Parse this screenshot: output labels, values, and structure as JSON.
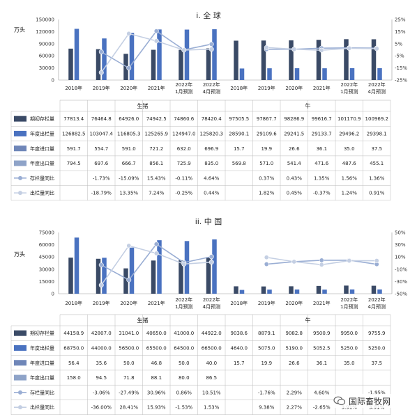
{
  "colors": {
    "stock": "#3a4a66",
    "prod": "#4a72c0",
    "imp": "#6f86b8",
    "exp": "#8ea3c8",
    "stockYoY": "#9aaed4",
    "expYoY": "#c4cfe3"
  },
  "watermark": {
    "text": "国际畜牧网"
  },
  "categories": [
    "2018年",
    "2019年",
    "2020年",
    "2021年",
    [
      "2022年",
      "1月预测"
    ],
    [
      "2022年",
      "4月预测"
    ]
  ],
  "row_labels": [
    "期初存栏量",
    "年度出栏量",
    "年度进口量",
    "年度出口量",
    "存栏量同比",
    "出栏量同比"
  ],
  "panels": [
    {
      "title": "i. 全 球",
      "unit": "万头",
      "left_ticks": [
        "150000",
        "120000",
        "90000",
        "60000",
        "30000",
        "0"
      ],
      "right_ticks": [
        "25%",
        "15%",
        "5%",
        "-5%",
        "-15%",
        "-25%"
      ],
      "groups": [
        "生猪",
        "牛"
      ]
    },
    {
      "title": "ii. 中 国",
      "unit": "万头",
      "left_ticks": [
        "75000",
        "60000",
        "45000",
        "30000",
        "15000",
        "0"
      ],
      "right_ticks": [
        "50%",
        "30%",
        "10%",
        "-10%",
        "-30%",
        "-50%"
      ],
      "groups": [
        "生猪",
        "牛"
      ]
    }
  ],
  "chart_data": [
    {
      "type": "bar",
      "title": "i. 全 球",
      "ylabel": "万头",
      "ylim": [
        0,
        150000
      ],
      "y2lim": [
        -25,
        25
      ],
      "categories": [
        "2018年",
        "2019年",
        "2020年",
        "2021年",
        "2022年1月预测",
        "2022年4月预测"
      ],
      "groups": [
        {
          "name": "生猪",
          "stock": [
            77813.4,
            76464.8,
            64926.0,
            74942.5,
            74860.6,
            78420.4
          ],
          "production": [
            126882.5,
            103047.4,
            116805.3,
            125265.9,
            124947.0,
            125820.3
          ],
          "imports": [
            591.7,
            554.7,
            591.0,
            721.2,
            632.0,
            696.9
          ],
          "exports": [
            794.5,
            697.6,
            666.7,
            856.1,
            725.9,
            835.0
          ],
          "stock_yoy": [
            null,
            -1.73,
            -15.09,
            15.43,
            -0.11,
            4.64
          ],
          "production_yoy": [
            null,
            -18.79,
            13.35,
            7.24,
            -0.25,
            0.44
          ]
        },
        {
          "name": "牛",
          "stock": [
            97505.5,
            97867.7,
            98286.9,
            99616.7,
            101170.9,
            100969.2
          ],
          "production": [
            28590.1,
            29109.6,
            29241.5,
            29133.7,
            29496.2,
            29398.1
          ],
          "imports": [
            15.7,
            19.9,
            26.6,
            36.1,
            35.0,
            37.5
          ],
          "exports": [
            569.8,
            571.0,
            541.4,
            471.6,
            487.6,
            455.1
          ],
          "stock_yoy": [
            null,
            0.37,
            0.43,
            1.35,
            1.56,
            1.36
          ],
          "production_yoy": [
            null,
            1.82,
            0.45,
            -0.37,
            1.24,
            0.91
          ]
        }
      ],
      "table": {
        "rows": [
          [
            "77813.4",
            "76464.8",
            "64926.0",
            "74942.5",
            "74860.6",
            "78420.4",
            "97505.5",
            "97867.7",
            "98286.9",
            "99616.7",
            "101170.9",
            "100969.2"
          ],
          [
            "126882.5",
            "103047.4",
            "116805.3",
            "125265.9",
            "124947.0",
            "125820.3",
            "28590.1",
            "29109.6",
            "29241.5",
            "29133.7",
            "29496.2",
            "29398.1"
          ],
          [
            "591.7",
            "554.7",
            "591.0",
            "721.2",
            "632.0",
            "696.9",
            "15.7",
            "19.9",
            "26.6",
            "36.1",
            "35.0",
            "37.5"
          ],
          [
            "794.5",
            "697.6",
            "666.7",
            "856.1",
            "725.9",
            "835.0",
            "569.8",
            "571.0",
            "541.4",
            "471.6",
            "487.6",
            "455.1"
          ],
          [
            "",
            "-1.73%",
            "-15.09%",
            "15.43%",
            "-0.11%",
            "4.64%",
            "",
            "0.37%",
            "0.43%",
            "1.35%",
            "1.56%",
            "1.36%"
          ],
          [
            "",
            "-18.79%",
            "13.35%",
            "7.24%",
            "-0.25%",
            "0.44%",
            "",
            "1.82%",
            "0.45%",
            "-0.37%",
            "1.24%",
            "0.91%"
          ]
        ]
      }
    },
    {
      "type": "bar",
      "title": "ii. 中 国",
      "ylabel": "万头",
      "ylim": [
        0,
        75000
      ],
      "y2lim": [
        -50,
        50
      ],
      "categories": [
        "2018年",
        "2019年",
        "2020年",
        "2021年",
        "2022年1月预测",
        "2022年4月预测"
      ],
      "groups": [
        {
          "name": "生猪",
          "stock": [
            44158.9,
            42807.0,
            31041.0,
            40650.0,
            41000.0,
            44922.0
          ],
          "production": [
            68750.0,
            44000.0,
            56500.0,
            65500.0,
            64500.0,
            66500.0
          ],
          "imports": [
            56.4,
            35.6,
            50.0,
            46.8,
            50.0,
            40.0
          ],
          "exports": [
            158.0,
            94.5,
            71.8,
            88.1,
            80.0,
            86.5
          ],
          "stock_yoy": [
            null,
            -3.06,
            -27.49,
            30.96,
            0.86,
            10.51
          ],
          "production_yoy": [
            null,
            -36.0,
            28.41,
            15.93,
            -1.53,
            1.53
          ]
        },
        {
          "name": "牛",
          "stock": [
            9038.6,
            8879.1,
            9082.8,
            9500.9,
            9950.0,
            9755.9
          ],
          "production": [
            4640.0,
            5075.0,
            5190.0,
            5052.5,
            5250.0,
            5250.0
          ],
          "imports": [
            15.7,
            19.9,
            26.6,
            36.1,
            35.0,
            37.5
          ],
          "exports": [
            null,
            null,
            null,
            null,
            null,
            null
          ],
          "stock_yoy": [
            null,
            -1.76,
            2.29,
            4.6,
            4.73,
            -1.95
          ],
          "production_yoy": [
            null,
            9.38,
            2.27,
            -2.65,
            3.91,
            3.91
          ]
        }
      ],
      "table": {
        "rows": [
          [
            "44158.9",
            "42807.0",
            "31041.0",
            "40650.0",
            "41000.0",
            "44922.0",
            "9038.6",
            "8879.1",
            "9082.8",
            "9500.9",
            "9950.0",
            "9755.9"
          ],
          [
            "68750.0",
            "44000.0",
            "56500.0",
            "65500.0",
            "64500.0",
            "66500.0",
            "4640.0",
            "5075.0",
            "5190.0",
            "5052.5",
            "5250.0",
            "5250.0"
          ],
          [
            "56.4",
            "35.6",
            "50.0",
            "46.8",
            "50.0",
            "40.0",
            "15.7",
            "19.9",
            "26.6",
            "36.1",
            "35.0",
            "37.5"
          ],
          [
            "158.0",
            "94.5",
            "71.8",
            "88.1",
            "80.0",
            "86.5",
            "",
            "",
            "",
            "",
            "",
            ""
          ],
          [
            "",
            "-3.06%",
            "-27.49%",
            "30.96%",
            "0.86%",
            "10.51%",
            "",
            "-1.76%",
            "2.29%",
            "4.60%",
            "",
            "-1.95%"
          ],
          [
            "",
            "-36.00%",
            "28.41%",
            "15.93%",
            "-1.53%",
            "1.53%",
            "",
            "9.38%",
            "2.27%",
            "-2.65%",
            "3.91%",
            "3.91%"
          ]
        ]
      }
    }
  ]
}
